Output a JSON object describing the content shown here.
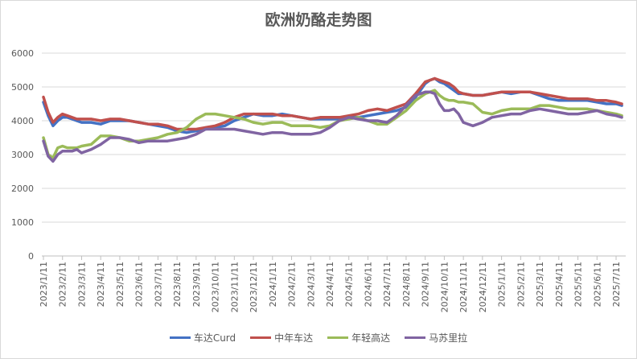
{
  "chart_data": {
    "type": "line",
    "title": "欧洲奶酪走势图",
    "xlabel": "",
    "ylabel": "",
    "ylim": [
      0,
      6000
    ],
    "yticks": [
      0,
      1000,
      2000,
      3000,
      4000,
      5000,
      6000
    ],
    "grid": true,
    "legend_position": "bottom",
    "x_tick_labels": [
      "2023/1/11",
      "2023/2/11",
      "2023/3/11",
      "2023/4/11",
      "2023/5/11",
      "2023/6/11",
      "2023/7/11",
      "2023/8/11",
      "2023/9/11",
      "2023/10/11",
      "2023/11/11",
      "2023/12/11",
      "2024/1/11",
      "2024/2/11",
      "2024/3/11",
      "2024/4/11",
      "2024/5/11",
      "2024/6/11",
      "2024/7/11",
      "2024/8/11",
      "2024/9/11",
      "2024/10/11",
      "2024/11/11",
      "2024/12/11",
      "2025/1/11",
      "2025/2/11",
      "2025/3/11",
      "2025/4/11",
      "2025/5/11",
      "2025/6/11",
      "2025/7/11"
    ],
    "x": [
      0,
      0.25,
      0.5,
      0.75,
      1,
      1.25,
      1.5,
      1.75,
      2,
      2.5,
      3,
      3.5,
      4,
      4.5,
      5,
      5.5,
      6,
      6.5,
      7,
      7.5,
      8,
      8.5,
      9,
      9.5,
      10,
      10.5,
      11,
      11.5,
      12,
      12.5,
      13,
      13.5,
      14,
      14.5,
      15,
      15.5,
      16,
      16.5,
      17,
      17.5,
      18,
      18.5,
      19,
      19.5,
      20,
      20.25,
      20.5,
      20.75,
      21,
      21.25,
      21.5,
      21.75,
      22,
      22.5,
      23,
      23.5,
      24,
      24.5,
      25,
      25.5,
      26,
      26.5,
      27,
      27.5,
      28,
      28.5,
      29,
      29.5,
      30,
      30.3
    ],
    "series": [
      {
        "name": "车达Curd",
        "color": "#4472c4",
        "values": [
          4550,
          4150,
          3850,
          4000,
          4100,
          4100,
          4050,
          4000,
          3950,
          3950,
          3900,
          4000,
          4000,
          4000,
          3950,
          3900,
          3850,
          3800,
          3700,
          3650,
          3700,
          3750,
          3800,
          3850,
          4000,
          4100,
          4200,
          4150,
          4150,
          4200,
          4150,
          4100,
          4050,
          4050,
          4050,
          4050,
          4100,
          4100,
          4150,
          4200,
          4250,
          4300,
          4400,
          4700,
          5100,
          5200,
          5250,
          5150,
          5100,
          5000,
          4900,
          4800,
          4800,
          4750,
          4750,
          4800,
          4850,
          4800,
          4850,
          4850,
          4750,
          4650,
          4600,
          4600,
          4600,
          4600,
          4550,
          4500,
          4500,
          4450
        ]
      },
      {
        "name": "中年车达",
        "color": "#c0504d",
        "values": [
          4700,
          4250,
          3950,
          4100,
          4200,
          4150,
          4100,
          4050,
          4050,
          4050,
          4000,
          4050,
          4050,
          4000,
          3950,
          3900,
          3900,
          3850,
          3750,
          3750,
          3750,
          3800,
          3850,
          3950,
          4100,
          4200,
          4200,
          4200,
          4200,
          4150,
          4150,
          4100,
          4050,
          4100,
          4100,
          4100,
          4150,
          4200,
          4300,
          4350,
          4300,
          4400,
          4500,
          4800,
          5150,
          5200,
          5250,
          5200,
          5150,
          5100,
          5000,
          4850,
          4800,
          4750,
          4750,
          4800,
          4850,
          4850,
          4850,
          4850,
          4800,
          4750,
          4700,
          4650,
          4650,
          4650,
          4600,
          4600,
          4550,
          4500
        ]
      },
      {
        "name": "年轻高达",
        "color": "#9bbb59",
        "values": [
          3500,
          3000,
          2900,
          3200,
          3250,
          3200,
          3200,
          3200,
          3250,
          3300,
          3550,
          3550,
          3500,
          3400,
          3400,
          3450,
          3500,
          3600,
          3650,
          3800,
          4050,
          4200,
          4200,
          4150,
          4100,
          4050,
          3950,
          3900,
          3950,
          3950,
          3850,
          3850,
          3850,
          3800,
          3850,
          4000,
          4050,
          4100,
          4000,
          3900,
          3900,
          4100,
          4300,
          4600,
          4800,
          4850,
          4900,
          4750,
          4650,
          4600,
          4600,
          4550,
          4550,
          4500,
          4250,
          4200,
          4300,
          4350,
          4350,
          4350,
          4450,
          4450,
          4400,
          4350,
          4350,
          4350,
          4300,
          4250,
          4200,
          4150
        ]
      },
      {
        "name": "马苏里拉",
        "color": "#8064a2",
        "values": [
          3400,
          2950,
          2800,
          3000,
          3100,
          3100,
          3100,
          3150,
          3050,
          3150,
          3300,
          3500,
          3500,
          3450,
          3350,
          3400,
          3400,
          3400,
          3450,
          3500,
          3600,
          3750,
          3750,
          3750,
          3750,
          3700,
          3650,
          3600,
          3650,
          3650,
          3600,
          3600,
          3600,
          3650,
          3800,
          4000,
          4100,
          4050,
          4000,
          4000,
          3950,
          4150,
          4450,
          4750,
          4850,
          4850,
          4800,
          4500,
          4300,
          4300,
          4350,
          4200,
          3950,
          3850,
          3950,
          4100,
          4150,
          4200,
          4200,
          4300,
          4350,
          4300,
          4250,
          4200,
          4200,
          4250,
          4300,
          4200,
          4150,
          4100
        ]
      }
    ]
  }
}
